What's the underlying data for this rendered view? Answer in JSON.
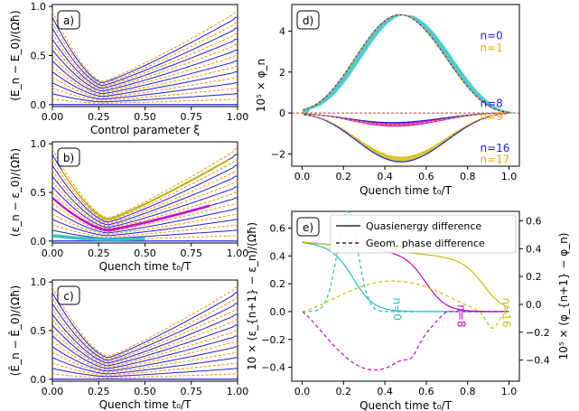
{
  "colors": {
    "blue": "#1f1fd9",
    "orange": "#ffa500",
    "red": "#cc3333",
    "cyan": "#20c0c0",
    "magenta": "#cc00cc",
    "olive": "#c8c000",
    "green": "#22aa22",
    "black": "#000000"
  },
  "chart_data": [
    {
      "panel": "a)",
      "type": "line",
      "xlabel": "Control parameter ξ",
      "ylabel": "(E_n − E_0)/(Ωħ)",
      "xlim": [
        0,
        1
      ],
      "ylim": [
        -0.02,
        1.02
      ],
      "xticks": [
        "0.00",
        "0.25",
        "0.50",
        "0.75",
        "1.00"
      ],
      "yticks": [
        "0.0",
        "0.5",
        "1.0"
      ],
      "levels": 18,
      "min_x": 0.27
    },
    {
      "panel": "b)",
      "type": "line",
      "xlabel": "Quench time t₀/T",
      "ylabel": "(ε_n − ε_0)/(Ωħ)",
      "xlim": [
        0,
        1
      ],
      "ylim": [
        -0.02,
        1.02
      ],
      "xticks": [
        "0.00",
        "0.25",
        "0.50",
        "0.75",
        "1.00"
      ],
      "yticks": [
        "0.0",
        "0.5",
        "1.0"
      ],
      "levels": 18,
      "min_x": 0.3
    },
    {
      "panel": "c)",
      "type": "line",
      "xlabel": "Quench time t₀/T",
      "ylabel": "(Ē_n − Ē_0)/(Ωħ)",
      "xlim": [
        0,
        1
      ],
      "ylim": [
        -0.02,
        1.02
      ],
      "xticks": [
        "0.00",
        "0.25",
        "0.50",
        "0.75",
        "1.00"
      ],
      "yticks": [
        "0.0",
        "0.5",
        "1.0"
      ],
      "levels": 18,
      "min_x": 0.3
    },
    {
      "panel": "d)",
      "type": "line",
      "xlabel": "Quench time t₀/T",
      "ylabel": "10⁵ × φ_n",
      "xlim": [
        -0.05,
        1.05
      ],
      "ylim": [
        -2.6,
        5.3
      ],
      "xticks": [
        "0.0",
        "0.2",
        "0.4",
        "0.6",
        "0.8",
        "1.0"
      ],
      "yticks": [
        "−2",
        "0",
        "2",
        "4"
      ],
      "series": [
        {
          "name": "n=0",
          "color": "blue",
          "peak": 4.85,
          "peak_x": 0.44
        },
        {
          "name": "n=1",
          "color": "orange",
          "peak": 4.85,
          "peak_x": 0.44
        },
        {
          "name": "n=8",
          "color": "blue",
          "peak": -0.5,
          "peak_x": 0.35
        },
        {
          "name": "n=9",
          "color": "orange",
          "peak": -0.6,
          "peak_x": 0.38
        },
        {
          "name": "n=16",
          "color": "blue",
          "peak": -2.4,
          "peak_x": 0.45
        },
        {
          "name": "n=17",
          "color": "orange",
          "peak": -2.2,
          "peak_x": 0.45
        }
      ]
    },
    {
      "panel": "e)",
      "type": "line",
      "xlabel": "Quench time t₀/T",
      "ylabel_left": "10 × (ε_{n+1} − ε_n)/(Ωħ)",
      "ylabel_right": "10⁵ × (φ_{n+1} − φ_n)",
      "xlim": [
        -0.05,
        1.05
      ],
      "ylim": [
        -0.5,
        0.72
      ],
      "xticks": [
        "0.0",
        "0.2",
        "0.4",
        "0.6",
        "0.8",
        "1.0"
      ],
      "yticks_left": [
        "−0.4",
        "−0.2",
        "0.0",
        "0.2",
        "0.4",
        "0.6"
      ],
      "yticks_right": [
        "−0.4",
        "−0.2",
        "0.0",
        "0.2",
        "0.4",
        "0.6"
      ],
      "legend": [
        "Quasienergy difference",
        "Geom. phase difference"
      ],
      "annotations": [
        "n=0",
        "n=8",
        "n=16"
      ],
      "series": [
        {
          "name": "n=0",
          "color": "cyan",
          "solid_drop": 0.25,
          "dashed_peak": 0.72,
          "dashed_peak_x": 0.22
        },
        {
          "name": "n=8",
          "color": "magenta",
          "solid_drop": 0.6,
          "dashed_min": -0.42,
          "dashed_min_x": 0.4
        },
        {
          "name": "n=16",
          "color": "olive",
          "solid_drop": 0.88,
          "dashed_peak": 0.22,
          "dashed_peak_x": 0.45
        }
      ]
    }
  ]
}
